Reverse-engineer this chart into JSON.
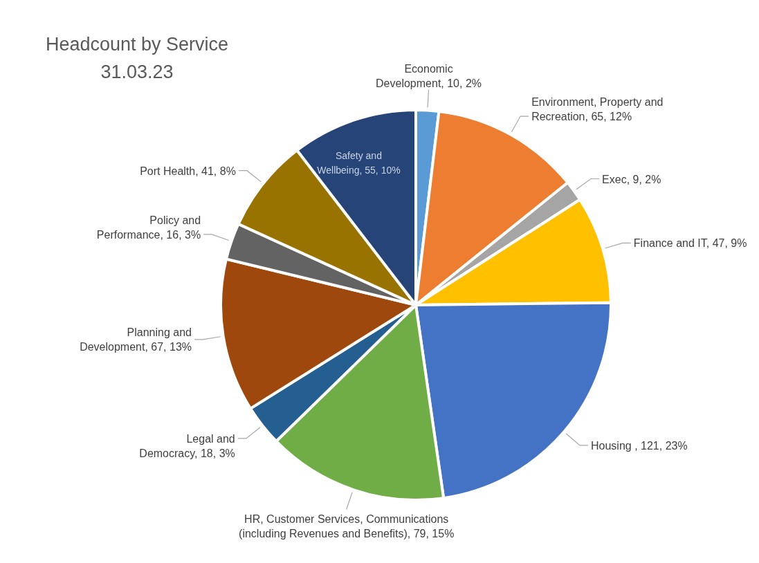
{
  "chart_data": {
    "type": "pie",
    "title": "Headcount by Service",
    "subtitle": "31.03.23",
    "categories": [
      "Economic Development",
      "Environment, Property and Recreation",
      "Exec",
      "Finance and IT",
      "Housing ",
      "HR, Customer Services, Communications (including Revenues and Benefits)",
      "Legal and Democracy",
      "Planning and Development",
      "Policy and Performance",
      "Port Health",
      "Safety and Wellbeing"
    ],
    "values": [
      10,
      65,
      9,
      47,
      121,
      79,
      18,
      67,
      16,
      41,
      55
    ],
    "colors": [
      "#5b9bd5",
      "#ed7d31",
      "#a5a5a5",
      "#ffc000",
      "#4472c4",
      "#70ad47",
      "#255e91",
      "#9e480e",
      "#636363",
      "#997300",
      "#264478"
    ],
    "value_labels": [
      "10, 2%",
      "65, 12%",
      "9, 2%",
      "47, 9%",
      "121, 23%",
      "79, 15%",
      "18, 3%",
      "67, 13%",
      "16, 3%",
      "41, 8%",
      "55, 10%"
    ],
    "legend": false
  }
}
